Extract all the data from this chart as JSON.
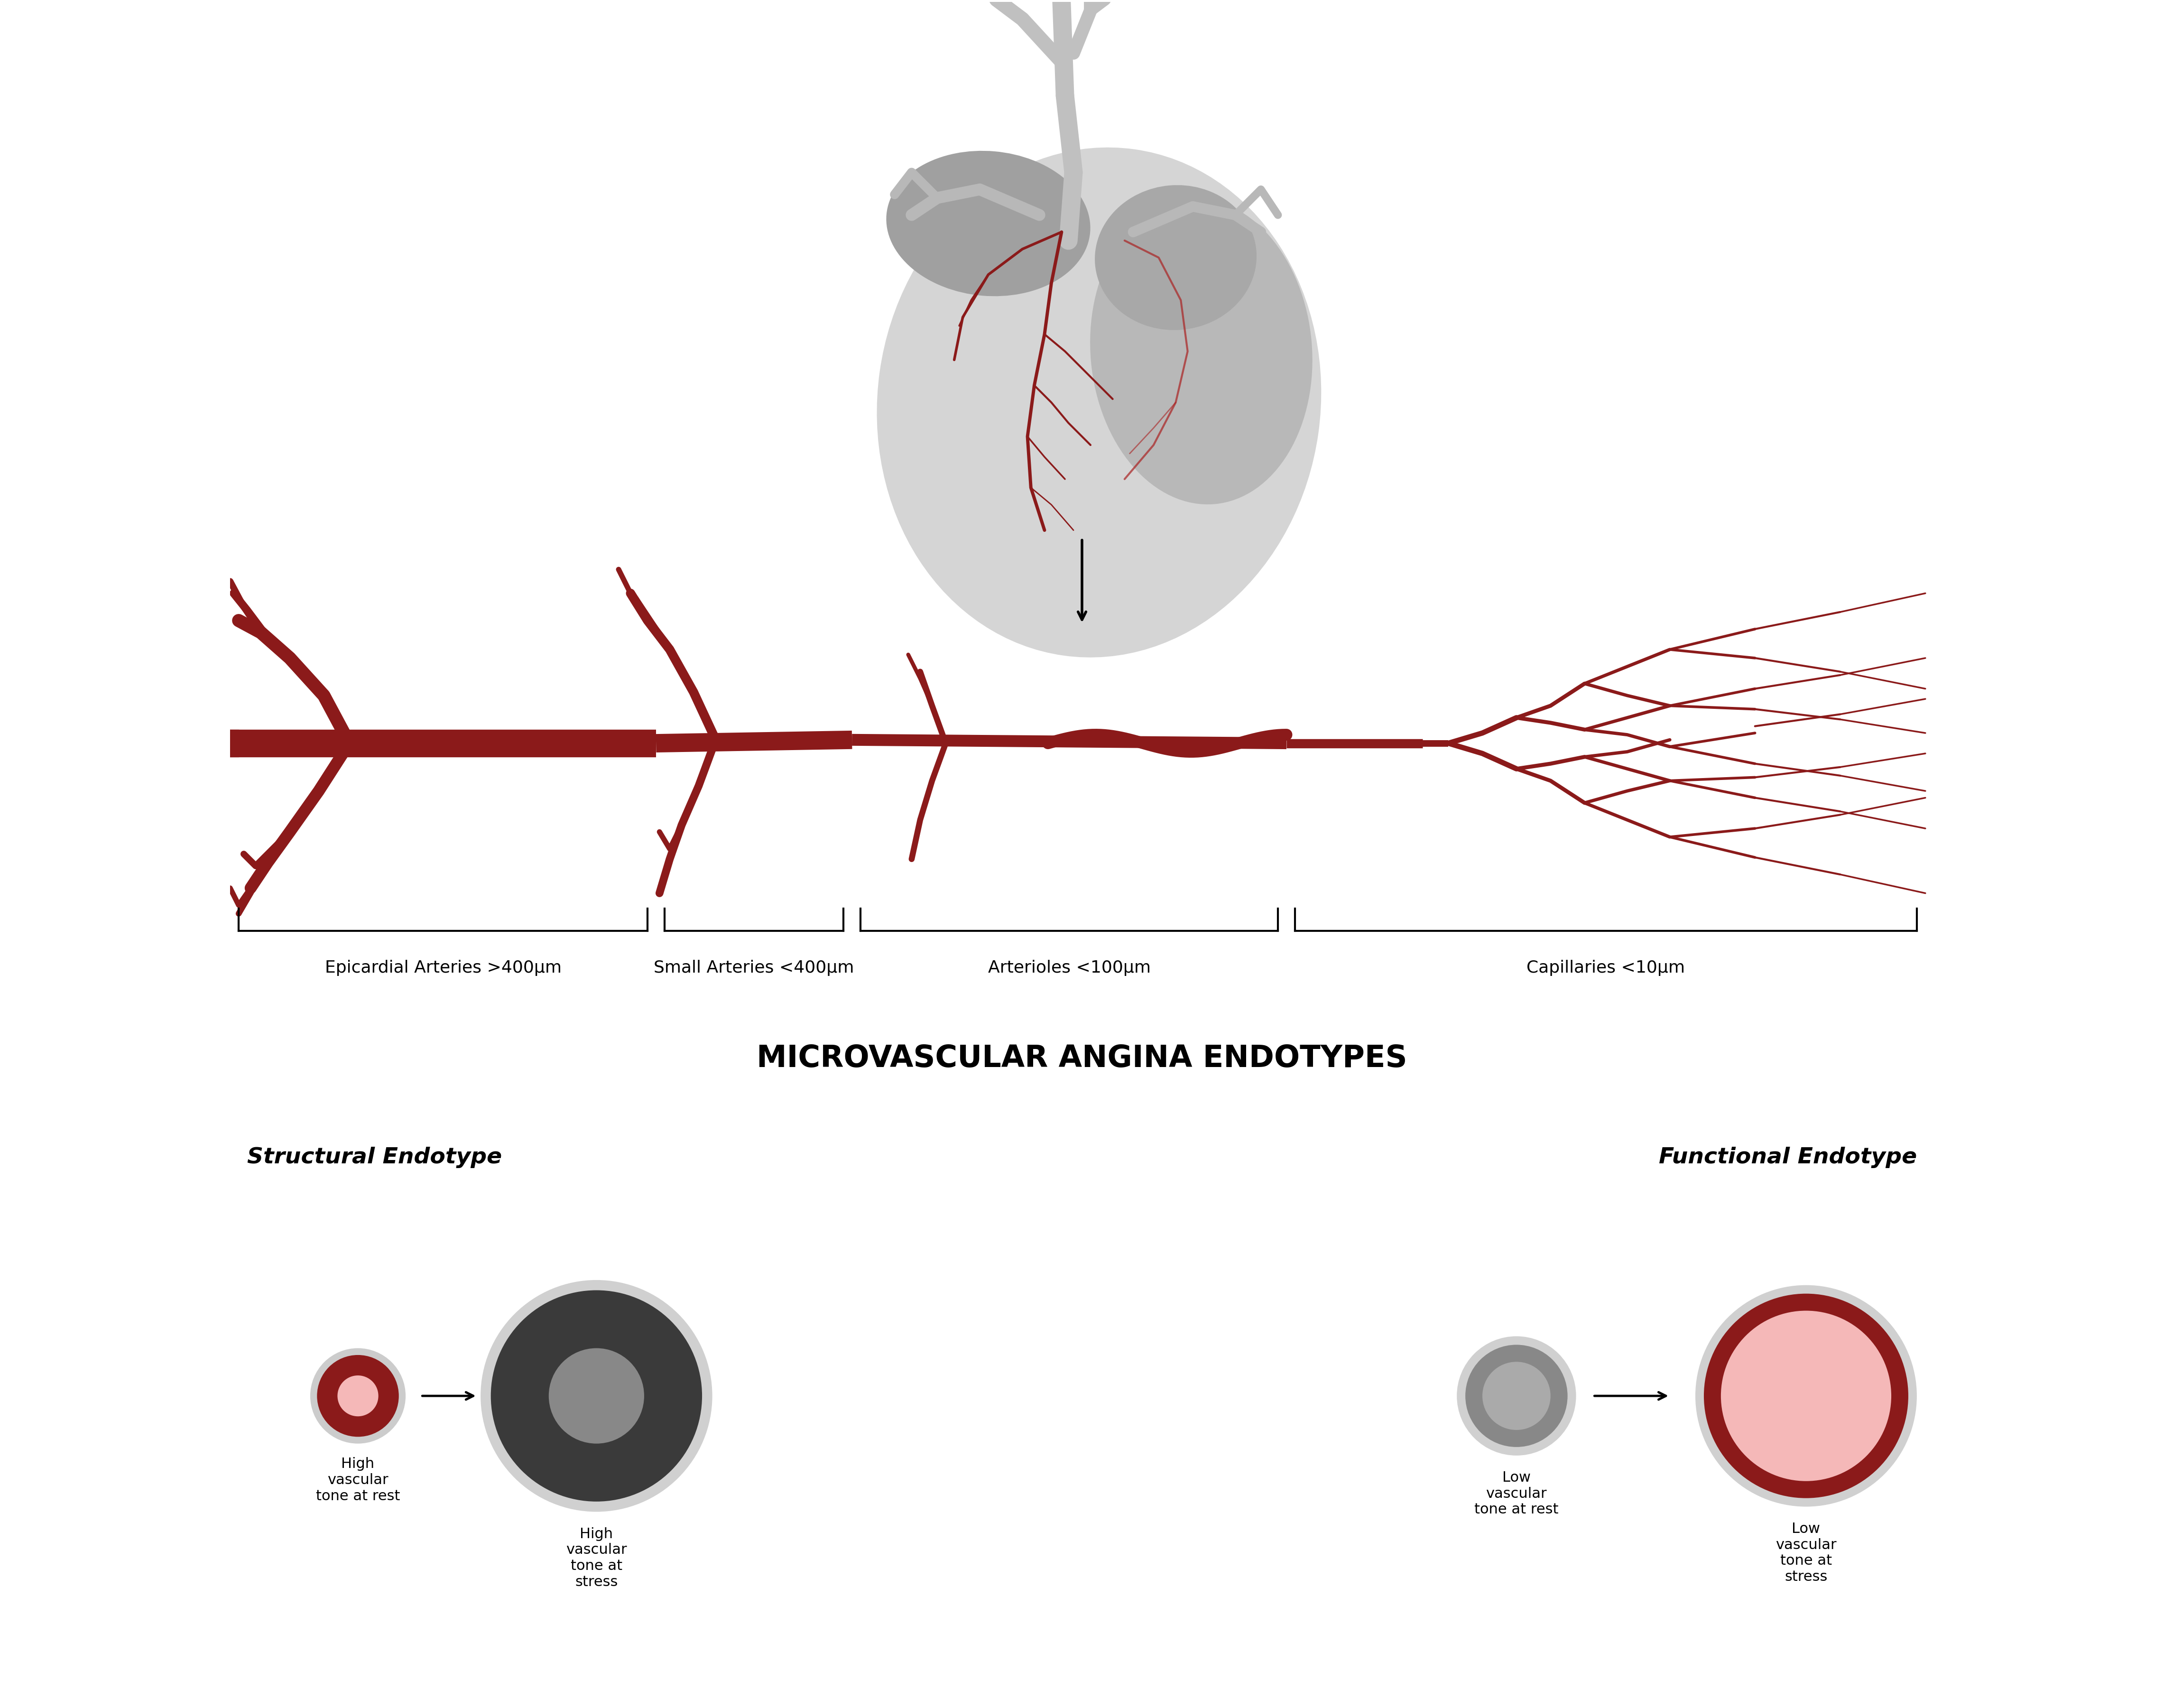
{
  "bg_color": "#ffffff",
  "heart_color_light": "#d8d8d8",
  "heart_color_dark": "#a0a0a0",
  "heart_color_mid": "#b8b8b8",
  "vessel_color": "#8b1a1a",
  "vessel_light": "#aa2222",
  "title": "MICROVASCULAR ANGINA ENDOTYPES",
  "structural_label": "Structural Endotype",
  "functional_label": "Functional Endotype",
  "segment_labels": [
    "Epicardial Arteries >400μm",
    "Small Arteries <400μm",
    "Arterioles <100μm",
    "Capillaries <10μm"
  ],
  "structural_labels_rest": "High\nvascular\ntone at rest",
  "structural_labels_stress": "High\nvascular\ntone at\nstress",
  "functional_labels_rest": "Low\nvascular\ntone at rest",
  "functional_labels_stress": "Low\nvascular\ntone at\nstress"
}
